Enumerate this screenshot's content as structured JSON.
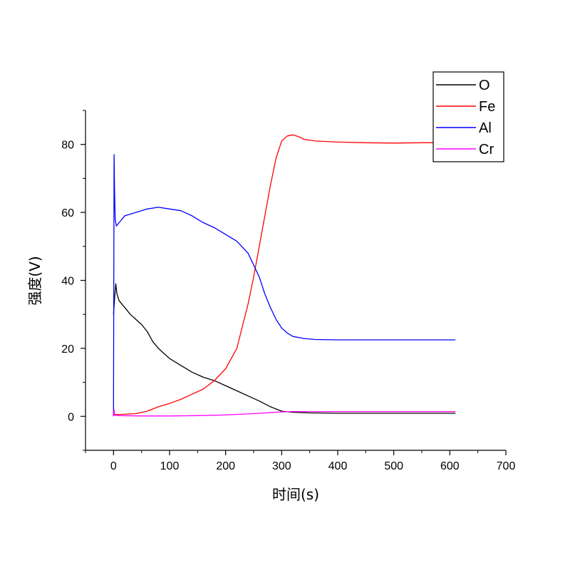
{
  "chart_data": {
    "type": "line",
    "xlabel": "时间(s)",
    "ylabel": "强度(V)",
    "xlim": [
      -50,
      700
    ],
    "ylim": [
      -10,
      90
    ],
    "x_ticks": [
      0,
      100,
      200,
      300,
      400,
      500,
      600,
      700
    ],
    "y_ticks": [
      0,
      20,
      40,
      60,
      80
    ],
    "grid": false,
    "legend_position": "top-right",
    "series": [
      {
        "name": "O",
        "color": "#000000",
        "x": [
          0,
          2,
          4,
          6,
          10,
          20,
          30,
          40,
          50,
          60,
          70,
          80,
          90,
          100,
          120,
          140,
          160,
          180,
          200,
          220,
          240,
          260,
          280,
          300,
          320,
          350,
          400,
          450,
          500,
          550,
          610
        ],
        "y": [
          30,
          35,
          39,
          36,
          34,
          32,
          30,
          28.5,
          27,
          25,
          22,
          20,
          18.5,
          17,
          15,
          13,
          11.5,
          10.5,
          9,
          7.5,
          6,
          4.5,
          2.8,
          1.5,
          1.2,
          1.0,
          0.9,
          0.9,
          0.9,
          0.9,
          0.9
        ]
      },
      {
        "name": "Fe",
        "color": "#ff0000",
        "x": [
          0,
          20,
          40,
          60,
          80,
          100,
          120,
          140,
          160,
          180,
          200,
          220,
          240,
          250,
          260,
          270,
          280,
          290,
          300,
          310,
          320,
          330,
          340,
          360,
          400,
          450,
          500,
          550,
          570
        ],
        "y": [
          0.5,
          0.6,
          0.8,
          1.5,
          2.8,
          3.8,
          5,
          6.5,
          8,
          10.5,
          14,
          20,
          33,
          41,
          50,
          59,
          68,
          76,
          81,
          82.5,
          82.8,
          82.3,
          81.5,
          81,
          80.7,
          80.5,
          80.4,
          80.5,
          80.5
        ]
      },
      {
        "name": "Al",
        "color": "#0000ff",
        "x": [
          0,
          1,
          2,
          3,
          5,
          10,
          20,
          40,
          60,
          80,
          100,
          120,
          140,
          160,
          180,
          200,
          220,
          240,
          260,
          270,
          280,
          290,
          300,
          310,
          320,
          340,
          360,
          400,
          450,
          500,
          550,
          610
        ],
        "y": [
          0,
          77,
          65,
          58,
          56,
          57,
          59,
          60,
          61,
          61.5,
          61,
          60.5,
          59,
          57,
          55.5,
          53.5,
          51.5,
          48,
          41,
          36,
          32,
          28.5,
          26,
          24.5,
          23.5,
          22.9,
          22.6,
          22.5,
          22.5,
          22.5,
          22.5,
          22.5
        ]
      },
      {
        "name": "Cr",
        "color": "#ff00ff",
        "x": [
          0,
          1,
          2,
          10,
          50,
          100,
          150,
          200,
          250,
          280,
          300,
          320,
          350,
          400,
          450,
          500,
          550,
          610
        ],
        "y": [
          0,
          2,
          0.3,
          0.2,
          0.1,
          0.1,
          0.2,
          0.4,
          0.8,
          1.1,
          1.3,
          1.4,
          1.4,
          1.4,
          1.4,
          1.4,
          1.4,
          1.4
        ]
      }
    ]
  }
}
